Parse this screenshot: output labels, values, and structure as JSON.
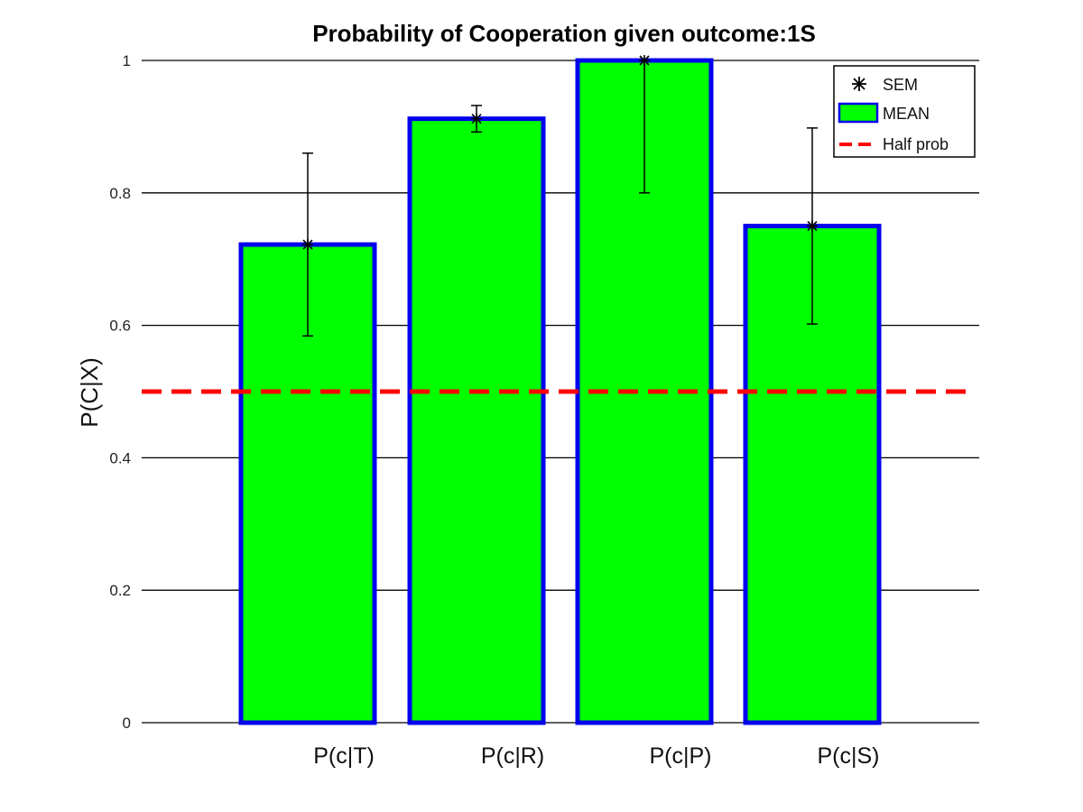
{
  "chart_data": {
    "type": "bar",
    "title": "Probability of Cooperation given outcome:1S",
    "ylabel": "P(C|X)",
    "categories": [
      "P(c|T)",
      "P(c|R)",
      "P(c|P)",
      "P(c|S)"
    ],
    "values": [
      0.722,
      0.912,
      1.0,
      0.75
    ],
    "sem": [
      0.138,
      0.02,
      0.2,
      0.148
    ],
    "ylim": [
      0,
      1
    ],
    "yticks": [
      0,
      0.2,
      0.4,
      0.6,
      0.8,
      1
    ],
    "ytick_labels": [
      "0",
      "0.2",
      "0.4",
      "0.6",
      "0.8",
      "1"
    ],
    "reference_line": {
      "y": 0.5,
      "name": "Half prob"
    },
    "legend": {
      "position": "top-right",
      "entries": [
        "SEM",
        "MEAN",
        "Half prob"
      ]
    },
    "grid": {
      "y": true,
      "x": false
    },
    "colors": {
      "bar_fill": "#00ff00",
      "bar_edge": "#0000ee",
      "reference_line": "#ff0000",
      "error_bar": "#000000",
      "grid": "#000000"
    }
  }
}
